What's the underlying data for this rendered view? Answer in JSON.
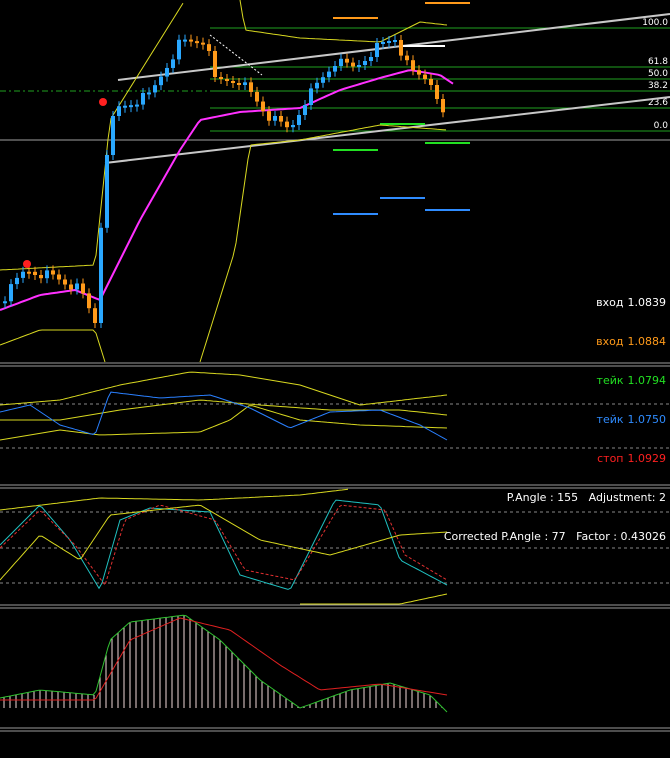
{
  "fib_levels": [
    "100.0",
    "61.8",
    "50.0",
    "38.2",
    "23.6",
    "0.0"
  ],
  "info": {
    "rows": [
      {
        "label": "вход",
        "value": "1.0839"
      },
      {
        "label": "вход",
        "value": "1.0884"
      },
      {
        "label": "тейк",
        "value": "1.0794"
      },
      {
        "label": "тейк",
        "value": "1.0750"
      },
      {
        "label": "стоп",
        "value": "1.0929"
      }
    ],
    "angle_line": "P.Angle : 155   Adjustment: 2",
    "corrected_line": "Corrected P.Angle : 77   Factor : 0.43026"
  }
}
